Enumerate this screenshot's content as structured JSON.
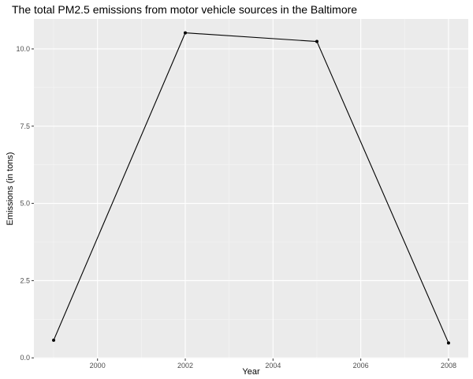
{
  "chart_data": {
    "type": "line",
    "title": "The total PM2.5 emissions from motor vehicle sources in the Baltimore",
    "xlabel": "Year",
    "ylabel": "Emissions (in tons)",
    "x": [
      1999,
      2002,
      2005,
      2008
    ],
    "series": [
      {
        "values": [
          0.57,
          10.52,
          10.24,
          0.48
        ]
      }
    ],
    "xlim": [
      1998.55,
      2008.45
    ],
    "ylim": [
      -0.02,
      10.97
    ],
    "x_ticks": [
      2000,
      2002,
      2004,
      2006,
      2008
    ],
    "x_tick_labels": [
      "2000",
      "2002",
      "2004",
      "2006",
      "2008"
    ],
    "y_ticks": [
      0.0,
      2.5,
      5.0,
      7.5,
      10.0
    ],
    "y_tick_labels": [
      "0.0",
      "2.5",
      "5.0",
      "7.5",
      "10.0"
    ],
    "grid": true,
    "legend": false,
    "colors": {
      "panel_background": "#ebebeb",
      "grid_major": "#ffffff",
      "grid_minor": "#f5f5f5",
      "line": "#000000",
      "point": "#000000",
      "tick_mark": "#333333",
      "tick_text": "#4d4d4d",
      "text": "#000000"
    }
  }
}
